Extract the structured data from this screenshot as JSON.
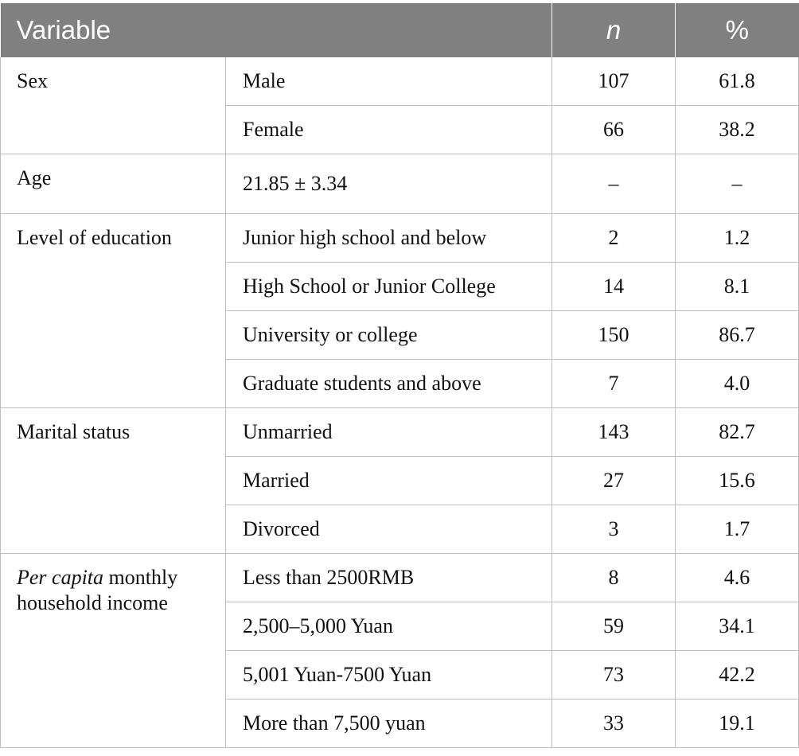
{
  "header": {
    "variable": "Variable",
    "n": "n",
    "percent": "%"
  },
  "groups": {
    "sex": {
      "label": "Sex",
      "rows": [
        {
          "item": "Male",
          "n": "107",
          "pct": "61.8"
        },
        {
          "item": "Female",
          "n": "66",
          "pct": "38.2"
        }
      ]
    },
    "age": {
      "label": "Age",
      "rows": [
        {
          "item": "21.85 ± 3.34",
          "n": "–",
          "pct": "–"
        }
      ]
    },
    "education": {
      "label": "Level of education",
      "rows": [
        {
          "item": "Junior high school and below",
          "n": "2",
          "pct": "1.2"
        },
        {
          "item": "High School or Junior College",
          "n": "14",
          "pct": "8.1"
        },
        {
          "item": "University or college",
          "n": "150",
          "pct": "86.7"
        },
        {
          "item": "Graduate students and above",
          "n": "7",
          "pct": "4.0"
        }
      ]
    },
    "marital": {
      "label": "Marital status",
      "rows": [
        {
          "item": "Unmarried",
          "n": "143",
          "pct": "82.7"
        },
        {
          "item": "Married",
          "n": "27",
          "pct": "15.6"
        },
        {
          "item": "Divorced",
          "n": "3",
          "pct": "1.7"
        }
      ]
    },
    "income": {
      "label_italic": "Per capita",
      "label_rest": " monthly household income",
      "rows": [
        {
          "item": "Less than 2500RMB",
          "n": "8",
          "pct": "4.6"
        },
        {
          "item": "2,500–5,000 Yuan",
          "n": "59",
          "pct": "34.1"
        },
        {
          "item": "5,001 Yuan-7500 Yuan",
          "n": "73",
          "pct": "42.2"
        },
        {
          "item": "More than 7,500 yuan",
          "n": "33",
          "pct": "19.1"
        }
      ]
    }
  }
}
